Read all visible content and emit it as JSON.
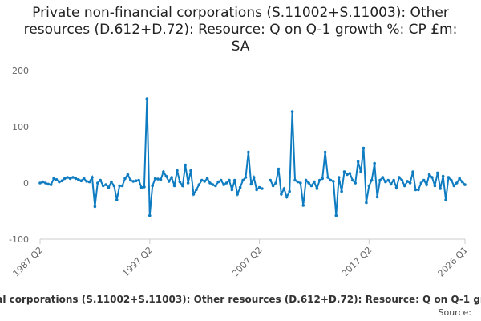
{
  "chart_data": {
    "type": "line",
    "title": "Private non-financial corporations (S.11002+S.11003): Other resources (D.612+D.72): Resource: Q on Q-1 growth %: CP £m: SA",
    "source": "Source:",
    "categories": [
      "1987 Q2",
      null,
      null,
      null,
      null,
      null,
      null,
      null,
      null,
      null,
      null,
      null,
      null,
      null,
      null,
      null,
      null,
      null,
      null,
      null,
      null,
      null,
      null,
      null,
      null,
      null,
      null,
      null,
      null,
      null,
      null,
      null,
      null,
      null,
      null,
      null,
      null,
      null,
      null,
      null,
      "1997 Q2",
      null,
      null,
      null,
      null,
      null,
      null,
      null,
      null,
      null,
      null,
      null,
      null,
      null,
      null,
      null,
      null,
      null,
      null,
      null,
      null,
      null,
      null,
      null,
      null,
      null,
      null,
      null,
      null,
      null,
      null,
      null,
      null,
      null,
      null,
      null,
      null,
      null,
      null,
      null,
      "2007 Q2",
      null,
      null,
      null,
      null,
      null,
      null,
      null,
      null,
      null,
      null,
      null,
      null,
      null,
      null,
      null,
      null,
      null,
      null,
      null,
      null,
      null,
      null,
      null,
      null,
      null,
      null,
      null,
      null,
      null,
      null,
      null,
      null,
      null,
      null,
      null,
      null,
      null,
      null,
      null,
      "2017 Q2",
      null,
      null,
      null,
      null,
      null,
      null,
      null,
      null,
      null,
      null,
      null,
      null,
      null,
      null,
      null,
      null,
      null,
      null,
      null,
      null,
      null,
      null,
      null,
      null,
      null,
      null,
      null,
      null,
      null,
      null,
      null,
      null,
      null,
      null,
      "2026 Q1"
    ],
    "series": [
      {
        "name": "Private non-financial corporations (S.11002+S.11003): Other resources (D.612+D.72): Resource: Q on Q-1 growth %: CP £m: SA",
        "color": "#0f7cc1",
        "values": [
          0,
          2,
          0,
          -2,
          -3,
          8,
          6,
          2,
          4,
          8,
          10,
          8,
          10,
          8,
          6,
          4,
          8,
          3,
          2,
          10,
          -42,
          0,
          5,
          -5,
          -3,
          -8,
          2,
          -5,
          -30,
          -5,
          -5,
          8,
          15,
          5,
          3,
          4,
          5,
          -8,
          -7,
          150,
          -58,
          -5,
          8,
          7,
          6,
          20,
          12,
          3,
          10,
          -5,
          22,
          2,
          -5,
          32,
          0,
          22,
          -20,
          -12,
          -3,
          5,
          3,
          8,
          0,
          -3,
          -5,
          2,
          5,
          -3,
          0,
          5,
          -12,
          5,
          -20,
          -8,
          5,
          10,
          55,
          -2,
          10,
          -12,
          -8,
          -10,
          null,
          null,
          5,
          -5,
          0,
          25,
          -20,
          -10,
          -25,
          -15,
          127,
          5,
          2,
          0,
          -40,
          5,
          0,
          -5,
          2,
          -10,
          5,
          8,
          55,
          10,
          5,
          3,
          -58,
          10,
          -15,
          20,
          15,
          17,
          5,
          0,
          38,
          20,
          62,
          -35,
          -5,
          5,
          35,
          -25,
          5,
          10,
          2,
          5,
          -2,
          5,
          -8,
          10,
          5,
          -5,
          3,
          0,
          20,
          -12,
          -12,
          0,
          5,
          -3,
          15,
          10,
          -5,
          18,
          -10,
          12,
          -30,
          10,
          5,
          -5,
          0,
          8,
          2,
          -3
        ]
      }
    ],
    "ylim": [
      -100,
      200
    ],
    "yticks": [
      -100,
      0,
      100,
      200
    ],
    "grid": false
  }
}
